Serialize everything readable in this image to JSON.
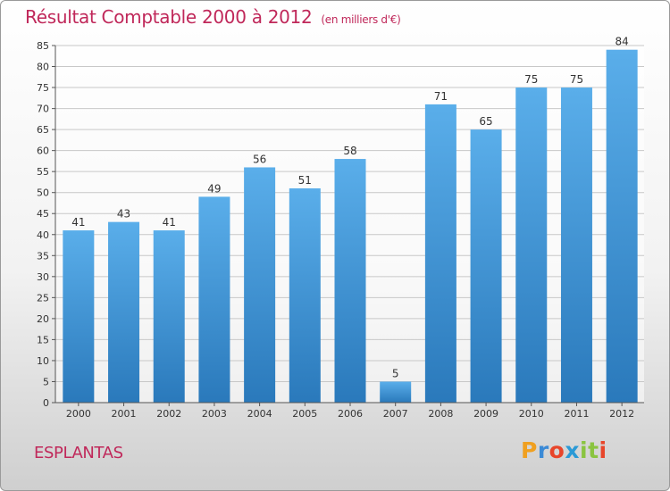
{
  "chart_data": {
    "type": "bar",
    "title": "Résultat Comptable 2000 à 2012",
    "subtitle": "(en milliers d'€)",
    "categories": [
      "2000",
      "2001",
      "2002",
      "2003",
      "2004",
      "2005",
      "2006",
      "2007",
      "2008",
      "2009",
      "2010",
      "2011",
      "2012"
    ],
    "values": [
      41,
      43,
      41,
      49,
      56,
      51,
      58,
      5,
      71,
      65,
      75,
      75,
      84
    ],
    "xlabel": "",
    "ylabel": "",
    "ylim": [
      0,
      85
    ],
    "yticks": [
      0,
      5,
      10,
      15,
      20,
      25,
      30,
      35,
      40,
      45,
      50,
      55,
      60,
      65,
      70,
      75,
      80,
      85
    ],
    "grid": true,
    "bar_color": "#3d8fd6"
  },
  "commune": "ESPLANTAS",
  "logo": {
    "text": "Proxiti",
    "colors": [
      "#f0a020",
      "#3b8ad6",
      "#e8452a",
      "#2b9ad6",
      "#8ac440",
      "#8ac440",
      "#e8452a"
    ]
  }
}
